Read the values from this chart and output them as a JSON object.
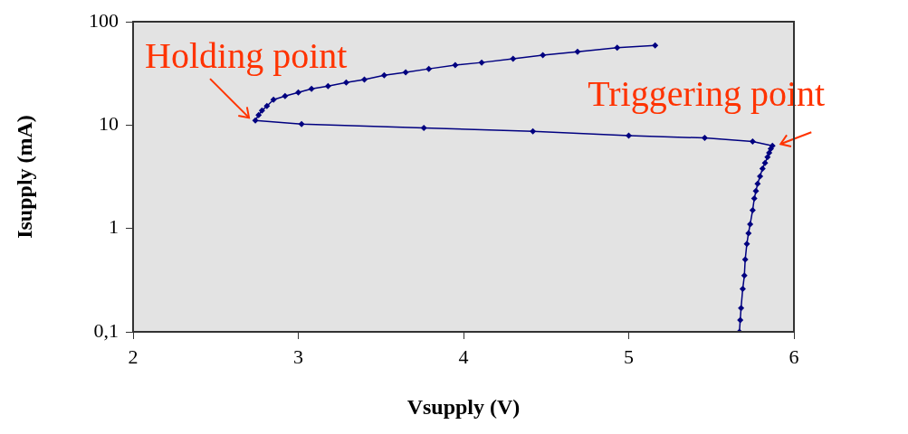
{
  "chart_data": {
    "type": "line",
    "xlabel": "Vsupply (V)",
    "ylabel": "Isupply (mA)",
    "xlim": [
      2,
      6
    ],
    "xticks": [
      2,
      3,
      4,
      5,
      6
    ],
    "ylim": [
      0.1,
      100
    ],
    "yticks": [
      {
        "value": 0.1,
        "label": "0,1"
      },
      1,
      10,
      100
    ],
    "log": "y",
    "grid": false,
    "legend": false,
    "marker": "diamond",
    "line_style": "solid",
    "series": [
      {
        "color": "#000080",
        "x": [
          5.67,
          5.675,
          5.68,
          5.69,
          5.7,
          5.705,
          5.715,
          5.725,
          5.735,
          5.75,
          5.76,
          5.77,
          5.78,
          5.795,
          5.81,
          5.825,
          5.84,
          5.85,
          5.86,
          5.87,
          5.75,
          5.46,
          5.0,
          4.42,
          3.76,
          3.02,
          2.74,
          2.76,
          2.78,
          2.81,
          2.85,
          2.92,
          3.0,
          3.08,
          3.18,
          3.29,
          3.4,
          3.52,
          3.65,
          3.79,
          3.95,
          4.11,
          4.3,
          4.48,
          4.69,
          4.93,
          5.16
        ],
        "values": [
          0.1,
          0.13,
          0.17,
          0.26,
          0.35,
          0.5,
          0.71,
          0.9,
          1.1,
          1.5,
          1.95,
          2.3,
          2.7,
          3.2,
          3.8,
          4.3,
          4.9,
          5.4,
          5.9,
          6.3,
          6.95,
          7.5,
          7.9,
          8.7,
          9.4,
          10.2,
          11.1,
          12.5,
          13.8,
          15.3,
          17.6,
          19.1,
          20.7,
          22.4,
          23.8,
          25.8,
          27.5,
          30.3,
          32.3,
          35,
          38,
          40.3,
          43.7,
          47.4,
          51.3,
          56,
          59
        ]
      }
    ],
    "annotations": [
      {
        "text": "Holding point",
        "x": 2.74,
        "y": 11.1
      },
      {
        "text": "Triggering point",
        "x": 5.87,
        "y": 6.3
      }
    ]
  }
}
